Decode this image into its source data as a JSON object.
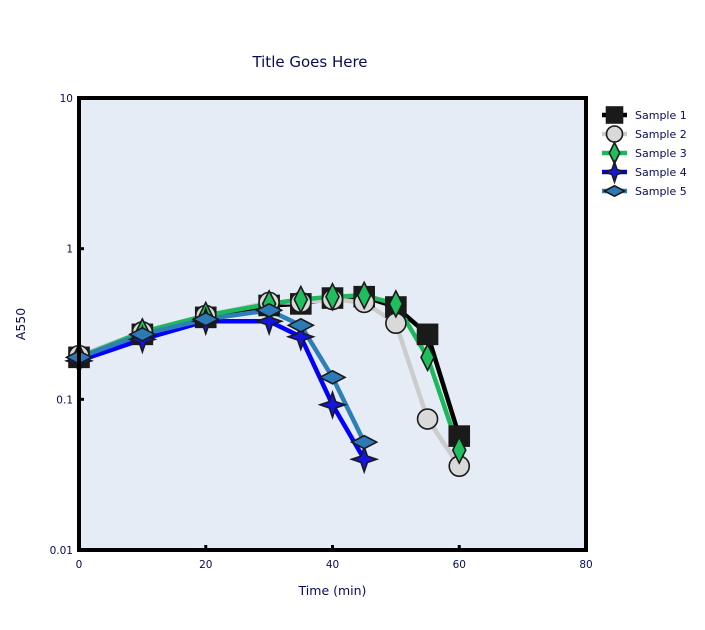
{
  "chart_data": {
    "type": "line",
    "title": "Title Goes Here",
    "xlabel": "Time (min)",
    "ylabel": "A550",
    "xlim": [
      0,
      80
    ],
    "ylim": [
      0.01,
      10
    ],
    "yscale": "log",
    "xticks": [
      0,
      20,
      40,
      60,
      80
    ],
    "yticks": [
      {
        "value": 0.01,
        "label": "0.01"
      },
      {
        "value": 0.1,
        "label": "0.1"
      },
      {
        "value": 1,
        "label": "1"
      },
      {
        "value": 10,
        "label": "10"
      }
    ],
    "grid": false,
    "legend_position": "right",
    "plot_background": "#e5ecf6",
    "series": [
      {
        "name": "Sample 1",
        "color": "#000000",
        "marker": "square",
        "marker_color": "#1a1a1a",
        "x": [
          0,
          10,
          20,
          30,
          35,
          40,
          45,
          50,
          55,
          60
        ],
        "y": [
          0.19,
          0.27,
          0.35,
          0.42,
          0.43,
          0.47,
          0.48,
          0.41,
          0.27,
          0.057
        ]
      },
      {
        "name": "Sample 2",
        "color": "#cccccc",
        "marker": "circle",
        "marker_color": "#d9d9d9",
        "x": [
          0,
          10,
          20,
          30,
          35,
          40,
          45,
          50,
          55,
          60
        ],
        "y": [
          0.195,
          0.28,
          0.36,
          0.44,
          0.44,
          0.46,
          0.44,
          0.32,
          0.074,
          0.036
        ]
      },
      {
        "name": "Sample 3",
        "color": "#1cb85c",
        "marker": "diamond-tall",
        "marker_color": "#1fbf5e",
        "x": [
          0,
          10,
          20,
          30,
          35,
          40,
          45,
          50,
          55,
          60
        ],
        "y": [
          0.19,
          0.28,
          0.36,
          0.43,
          0.46,
          0.48,
          0.49,
          0.43,
          0.19,
          0.046
        ]
      },
      {
        "name": "Sample 4",
        "color": "#0000ff",
        "marker": "star4",
        "marker_color": "#1515e0",
        "x": [
          0,
          10,
          20,
          30,
          35,
          40,
          45
        ],
        "y": [
          0.18,
          0.25,
          0.33,
          0.33,
          0.26,
          0.092,
          0.04
        ]
      },
      {
        "name": "Sample 5",
        "color": "#2e7fb8",
        "marker": "diamond-wide",
        "marker_color": "#2c7bb6",
        "x": [
          0,
          10,
          20,
          30,
          35,
          40,
          45
        ],
        "y": [
          0.19,
          0.27,
          0.34,
          0.39,
          0.31,
          0.14,
          0.052
        ]
      }
    ]
  }
}
